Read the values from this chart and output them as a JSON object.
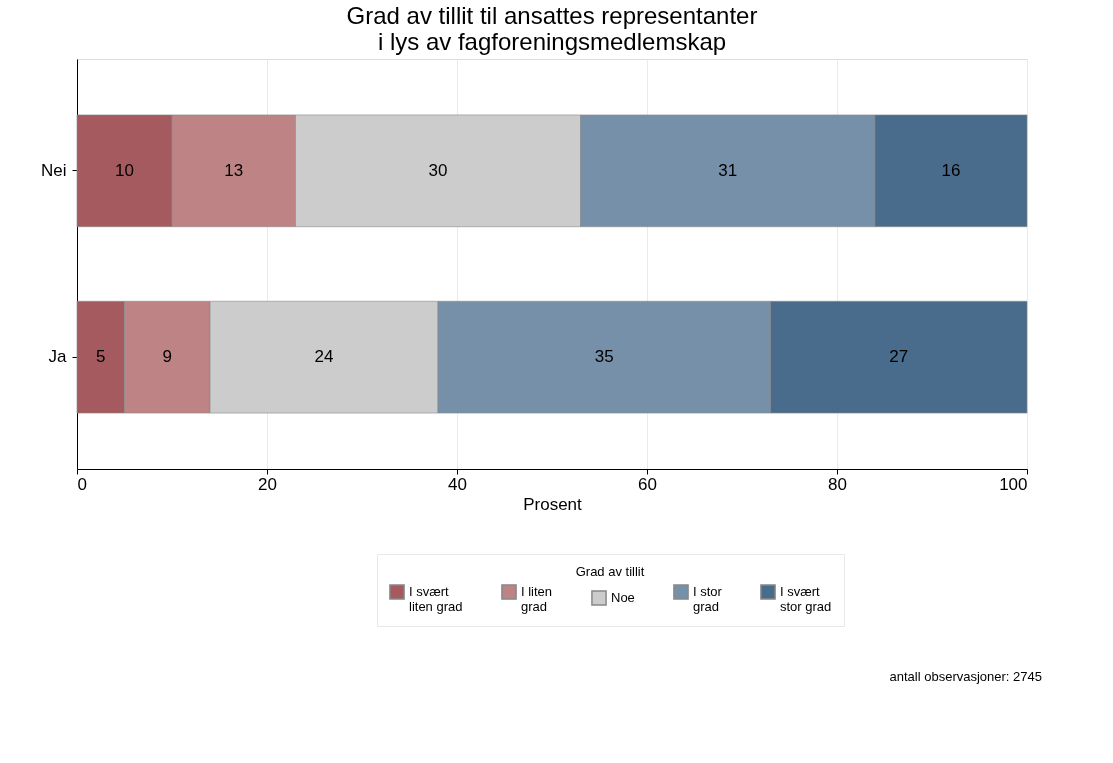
{
  "chart_data": {
    "type": "bar",
    "orientation": "horizontal",
    "stacked": true,
    "title": "Grad av tillit til ansattes representanter\ni lys av fagforeningsmedlemskap",
    "xlabel": "Prosent",
    "legend_title": "Grad av tillit",
    "categories": [
      "Nei",
      "Ja"
    ],
    "series": [
      {
        "name": "I svært liten grad",
        "color": "#a45a5e",
        "values": [
          10,
          5
        ]
      },
      {
        "name": "I liten grad",
        "color": "#bd8385",
        "values": [
          13,
          9
        ]
      },
      {
        "name": "Noe",
        "color": "#cccccc",
        "values": [
          30,
          24
        ]
      },
      {
        "name": "I stor grad",
        "color": "#7690aa",
        "values": [
          31,
          35
        ]
      },
      {
        "name": "I svært stor grad",
        "color": "#496b8c",
        "values": [
          16,
          27
        ]
      }
    ],
    "xlim": [
      0,
      100
    ],
    "xticks": [
      0,
      20,
      40,
      60,
      80,
      100
    ],
    "grid": "x",
    "legend": "bottom",
    "data_labels": true,
    "annotations": [
      "antall observasjoner: 2745"
    ]
  }
}
